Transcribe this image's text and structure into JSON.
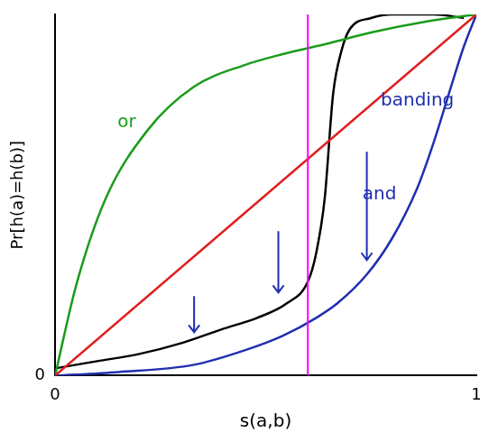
{
  "chart_data": {
    "type": "line",
    "x_label": "s(a,b)",
    "y_label": "Pr[h(a)=h(b)]",
    "xlim": [
      0,
      1
    ],
    "ylim": [
      0,
      1
    ],
    "xticks": [
      0,
      1
    ],
    "yticks": [
      0
    ],
    "grid": false,
    "series": [
      {
        "name": null,
        "color": "#e02020",
        "x": [
          0,
          1
        ],
        "values": [
          0,
          1
        ]
      },
      {
        "name": "or",
        "color": "#1a9c1a",
        "x": [
          0,
          0.05,
          0.12,
          0.22,
          0.33,
          0.45,
          0.54,
          0.65,
          0.75,
          0.88,
          1
        ],
        "values": [
          0,
          0.25,
          0.49,
          0.68,
          0.8,
          0.86,
          0.89,
          0.92,
          0.95,
          0.98,
          1
        ]
      },
      {
        "name": "and",
        "color": "#1f2fb0",
        "x": [
          0,
          0.15,
          0.33,
          0.45,
          0.54,
          0.62,
          0.67,
          0.74,
          0.8,
          0.86,
          0.9,
          0.94,
          0.97,
          1
        ],
        "values": [
          0,
          0.01,
          0.03,
          0.07,
          0.11,
          0.16,
          0.2,
          0.28,
          0.38,
          0.52,
          0.65,
          0.8,
          0.91,
          1
        ]
      },
      {
        "name": "banding",
        "color": "#000000",
        "x": [
          0,
          0.1,
          0.2,
          0.3,
          0.4,
          0.48,
          0.55,
          0.6,
          0.62,
          0.64,
          0.66,
          0.68,
          0.7,
          0.75,
          0.8,
          0.9,
          0.97
        ],
        "values": [
          0.02,
          0.04,
          0.06,
          0.09,
          0.13,
          0.16,
          0.2,
          0.26,
          0.34,
          0.49,
          0.78,
          0.9,
          0.96,
          0.99,
          1,
          1,
          0.99
        ]
      }
    ],
    "vline": {
      "x": 0.6,
      "color": "#ff00ff"
    },
    "annotations": [
      {
        "text": "or",
        "x": 0.17,
        "y": 0.7,
        "color": "#1a9c1a"
      },
      {
        "text": "and",
        "x": 0.77,
        "y": 0.5,
        "color": "#1f2fb0"
      },
      {
        "text": "banding",
        "x": 0.86,
        "y": 0.76,
        "color": "#1f2fb0"
      }
    ],
    "arrows": [
      {
        "x": 0.33,
        "from": 0.22,
        "to": 0.12,
        "color": "#1f2fb0"
      },
      {
        "x": 0.53,
        "from": 0.4,
        "to": 0.23,
        "color": "#1f2fb0"
      },
      {
        "x": 0.74,
        "from": 0.62,
        "to": 0.32,
        "color": "#1f2fb0"
      }
    ]
  }
}
